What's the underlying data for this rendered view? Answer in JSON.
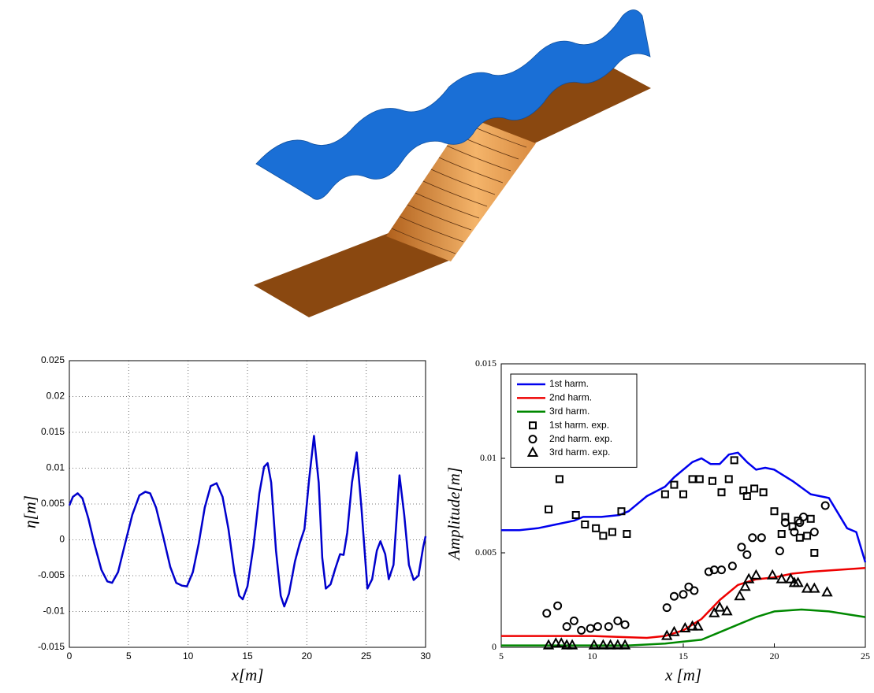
{
  "chart_data": [
    {
      "type": "line",
      "xlabel": "x[m]",
      "ylabel": "η[m]",
      "color": "#0000cc",
      "grid": true,
      "xlim": [
        0,
        30
      ],
      "ylim": [
        -0.015,
        0.025
      ],
      "xticks": [
        0,
        5,
        10,
        15,
        20,
        25,
        30
      ],
      "yticks": [
        -0.015,
        -0.01,
        -0.005,
        0,
        0.005,
        0.01,
        0.015,
        0.02,
        0.025
      ],
      "x": [
        0,
        0.3,
        0.7,
        1.1,
        1.6,
        2.1,
        2.7,
        3.2,
        3.6,
        4.1,
        4.7,
        5.3,
        5.9,
        6.4,
        6.8,
        7.3,
        7.9,
        8.5,
        9.0,
        9.5,
        9.9,
        10.4,
        10.9,
        11.4,
        11.9,
        12.4,
        12.9,
        13.4,
        13.9,
        14.3,
        14.6,
        15.0,
        15.5,
        16.0,
        16.4,
        16.7,
        17.0,
        17.4,
        17.8,
        18.1,
        18.5,
        19.0,
        19.4,
        19.8,
        20.2,
        20.6,
        21.0,
        21.3,
        21.6,
        22.0,
        22.4,
        22.8,
        23.1,
        23.4,
        23.8,
        24.2,
        24.6,
        25.1,
        25.5,
        25.9,
        26.2,
        26.6,
        26.9,
        27.3,
        27.8,
        28.2,
        28.6,
        29.0,
        29.4,
        29.8,
        30
      ],
      "values": [
        0.0048,
        0.006,
        0.0065,
        0.0058,
        0.003,
        -0.0005,
        -0.0042,
        -0.0058,
        -0.006,
        -0.0045,
        -0.0005,
        0.0035,
        0.0062,
        0.0067,
        0.0065,
        0.0045,
        0.0005,
        -0.0038,
        -0.006,
        -0.0064,
        -0.0065,
        -0.0045,
        -0.0005,
        0.0045,
        0.0075,
        0.0079,
        0.006,
        0.0015,
        -0.0045,
        -0.0078,
        -0.0083,
        -0.0065,
        -0.001,
        0.0065,
        0.0102,
        0.0107,
        0.008,
        -0.0015,
        -0.0078,
        -0.0093,
        -0.0075,
        -0.003,
        -0.0005,
        0.0015,
        0.0085,
        0.0145,
        0.008,
        -0.0025,
        -0.0068,
        -0.0062,
        -0.004,
        -0.002,
        -0.0021,
        0.001,
        0.008,
        0.0122,
        0.0045,
        -0.0068,
        -0.0055,
        -0.0015,
        -0.0002,
        -0.002,
        -0.0055,
        -0.0035,
        0.009,
        0.0035,
        -0.0035,
        -0.0056,
        -0.005,
        -0.001,
        0.0005
      ]
    },
    {
      "type": "line",
      "xlabel": "x [m]",
      "ylabel": "Amplitude[m]",
      "grid": false,
      "legend": "upper left",
      "xlim": [
        5,
        25
      ],
      "ylim": [
        0,
        0.015
      ],
      "xticks": [
        5,
        10,
        15,
        20,
        25
      ],
      "yticks": [
        0,
        0.005,
        0.01,
        0.015
      ],
      "series": [
        {
          "name": "1st harm.",
          "color": "#0000ee",
          "x": [
            5,
            6,
            7,
            8,
            9,
            9.5,
            10.5,
            11.5,
            12,
            13,
            14,
            14.5,
            15.5,
            16,
            16.5,
            17,
            17.5,
            18,
            18.5,
            19,
            19.5,
            20,
            21,
            22,
            23,
            24,
            24.5,
            25
          ],
          "values": [
            0.0062,
            0.0062,
            0.0063,
            0.0065,
            0.0067,
            0.0069,
            0.0069,
            0.007,
            0.0072,
            0.008,
            0.0085,
            0.009,
            0.0098,
            0.01,
            0.0097,
            0.0097,
            0.0102,
            0.0103,
            0.0098,
            0.0094,
            0.0095,
            0.0094,
            0.0088,
            0.0081,
            0.0079,
            0.0063,
            0.0061,
            0.0045
          ]
        },
        {
          "name": "2nd harm.",
          "color": "#ee0000",
          "x": [
            5,
            9,
            10,
            13,
            14,
            15,
            16,
            17,
            18,
            19,
            20,
            21,
            22,
            23.5,
            25
          ],
          "values": [
            0.0006,
            0.0006,
            0.0006,
            0.0005,
            0.0006,
            0.0009,
            0.0015,
            0.0025,
            0.0033,
            0.0036,
            0.0037,
            0.0039,
            0.004,
            0.0041,
            0.0042
          ]
        },
        {
          "name": "3rd harm.",
          "color": "#008800",
          "x": [
            5,
            12,
            14,
            15,
            16,
            17,
            18,
            19,
            20,
            21.5,
            23,
            25
          ],
          "values": [
            0.0001,
            0.0001,
            0.0002,
            0.0003,
            0.0004,
            0.0008,
            0.0012,
            0.0016,
            0.0019,
            0.002,
            0.0019,
            0.0016
          ]
        },
        {
          "name": "1st harm. exp.",
          "color": "#000000",
          "marker": "square",
          "x": [
            7.6,
            8.2,
            9.1,
            9.6,
            10.2,
            10.6,
            11.1,
            11.6,
            11.9,
            14,
            14.5,
            15,
            15.5,
            15.9,
            16.6,
            17.1,
            17.5,
            17.8,
            18.3,
            18.5,
            18.9,
            19.4,
            20,
            20.4,
            20.6,
            21,
            21.3,
            21.4,
            21.8,
            22,
            22.2
          ],
          "values": [
            0.0073,
            0.0089,
            0.007,
            0.0065,
            0.0063,
            0.0059,
            0.0061,
            0.0072,
            0.006,
            0.0081,
            0.0086,
            0.0081,
            0.0089,
            0.0089,
            0.0088,
            0.0082,
            0.0089,
            0.0099,
            0.0083,
            0.008,
            0.0084,
            0.0082,
            0.0072,
            0.006,
            0.0069,
            0.0064,
            0.0067,
            0.0058,
            0.0059,
            0.0068,
            0.005
          ]
        },
        {
          "name": "2nd harm. exp.",
          "color": "#000000",
          "marker": "circle",
          "x": [
            7.5,
            8.1,
            8.6,
            9,
            9.4,
            9.9,
            10.3,
            10.9,
            11.4,
            11.8,
            14.1,
            14.5,
            15,
            15.3,
            15.6,
            16.4,
            16.7,
            17.1,
            17.7,
            18.2,
            18.5,
            18.8,
            19.3,
            20.3,
            20.6,
            21.1,
            21.4,
            21.6,
            22.2,
            22.8
          ],
          "values": [
            0.0018,
            0.0022,
            0.0011,
            0.0014,
            0.0009,
            0.001,
            0.0011,
            0.0011,
            0.0014,
            0.0012,
            0.0021,
            0.0027,
            0.0028,
            0.0032,
            0.003,
            0.004,
            0.0041,
            0.0041,
            0.0043,
            0.0053,
            0.0049,
            0.0058,
            0.0058,
            0.0051,
            0.0066,
            0.0061,
            0.0066,
            0.0069,
            0.0061,
            0.0075
          ]
        },
        {
          "name": "3rd harm. exp.",
          "color": "#000000",
          "marker": "triangle",
          "x": [
            7.6,
            8,
            8.3,
            8.6,
            8.9,
            10.1,
            10.6,
            11,
            11.4,
            11.8,
            14.1,
            14.5,
            15.1,
            15.5,
            15.8,
            16.7,
            17,
            17.4,
            18.1,
            18.4,
            18.6,
            19,
            19.9,
            20.4,
            20.9,
            21.1,
            21.3,
            21.8,
            22.2,
            22.9
          ],
          "values": [
            0.0001,
            0.0002,
            0.0002,
            0.0001,
            0.0001,
            0.0001,
            0.0001,
            0.0001,
            0.0001,
            0.0001,
            0.0006,
            0.0008,
            0.001,
            0.0011,
            0.0011,
            0.0018,
            0.0021,
            0.0019,
            0.0027,
            0.0032,
            0.0036,
            0.0038,
            0.0038,
            0.0036,
            0.0036,
            0.0034,
            0.0034,
            0.0031,
            0.0031,
            0.0029
          ]
        }
      ]
    }
  ]
}
